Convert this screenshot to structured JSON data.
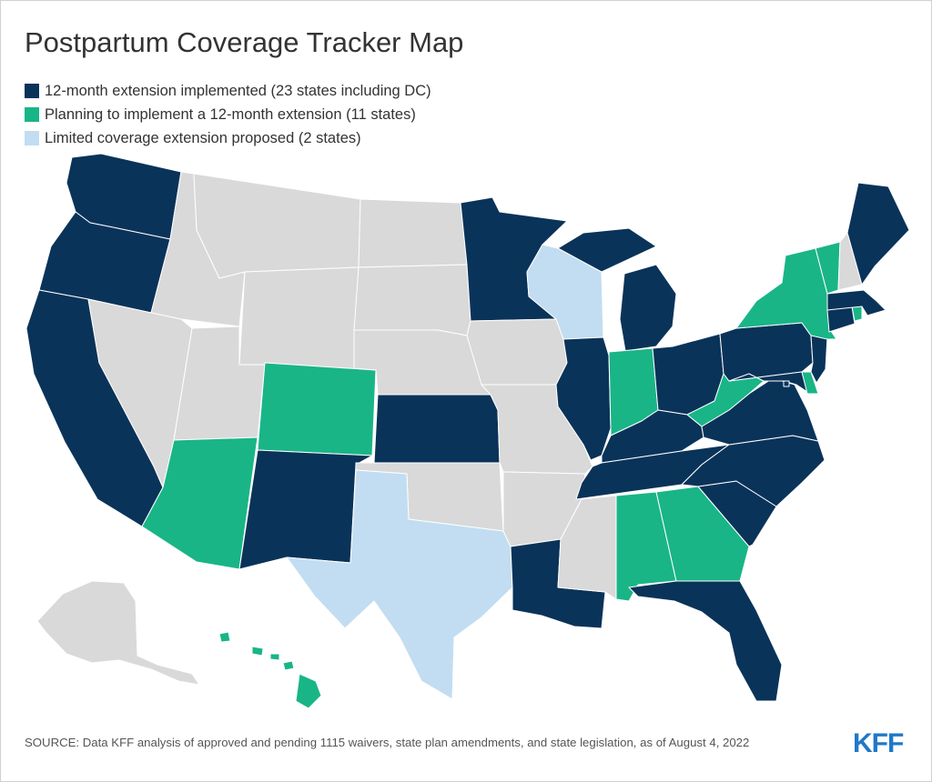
{
  "title": "Postpartum Coverage Tracker Map",
  "legend": {
    "implemented": {
      "label": "12-month extension implemented (23 states including DC)",
      "color": "#0a3359"
    },
    "planning": {
      "label": "Planning to implement a 12-month extension (11 states)",
      "color": "#19b587"
    },
    "limited": {
      "label": "Limited coverage extension proposed (2 states)",
      "color": "#c2ddf1"
    }
  },
  "no_action_color": "#d9d9d9",
  "state_status": {
    "WA": "implemented",
    "OR": "implemented",
    "CA": "implemented",
    "NM": "implemented",
    "KS": "implemented",
    "MN": "implemented",
    "IL": "implemented",
    "MI": "implemented",
    "OH": "implemented",
    "KY": "implemented",
    "TN": "implemented",
    "LA": "implemented",
    "FL": "implemented",
    "SC": "implemented",
    "NC": "implemented",
    "VA": "implemented",
    "MD": "implemented",
    "PA": "implemented",
    "NJ": "implemented",
    "CT": "implemented",
    "MA": "implemented",
    "ME": "implemented",
    "DC": "implemented",
    "AZ": "planning",
    "CO": "planning",
    "IN": "planning",
    "WV": "planning",
    "AL": "planning",
    "GA": "planning",
    "NY": "planning",
    "VT": "planning",
    "RI": "planning",
    "DE": "planning",
    "HI": "planning",
    "WI": "limited",
    "TX": "limited",
    "ID": "none",
    "MT": "none",
    "WY": "none",
    "NV": "none",
    "UT": "none",
    "ND": "none",
    "SD": "none",
    "NE": "none",
    "OK": "none",
    "IA": "none",
    "MO": "none",
    "AR": "none",
    "MS": "none",
    "NH": "none",
    "AK": "none"
  },
  "source": "SOURCE: Data KFF analysis of approved and pending 1115 waivers, state plan amendments, and state legislation, as of August 4, 2022",
  "logo": {
    "text": "KFF",
    "color": "#1f78c8"
  }
}
